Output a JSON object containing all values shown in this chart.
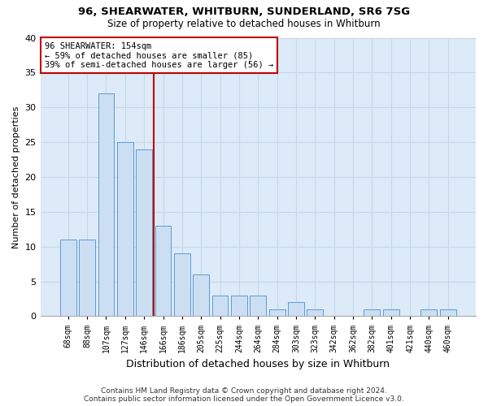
{
  "title_line1": "96, SHEARWATER, WHITBURN, SUNDERLAND, SR6 7SG",
  "title_line2": "Size of property relative to detached houses in Whitburn",
  "xlabel": "Distribution of detached houses by size in Whitburn",
  "ylabel": "Number of detached properties",
  "footer_line1": "Contains HM Land Registry data © Crown copyright and database right 2024.",
  "footer_line2": "Contains public sector information licensed under the Open Government Licence v3.0.",
  "categories": [
    "68sqm",
    "88sqm",
    "107sqm",
    "127sqm",
    "146sqm",
    "166sqm",
    "186sqm",
    "205sqm",
    "225sqm",
    "244sqm",
    "264sqm",
    "284sqm",
    "303sqm",
    "323sqm",
    "342sqm",
    "362sqm",
    "382sqm",
    "401sqm",
    "421sqm",
    "440sqm",
    "460sqm"
  ],
  "values": [
    11,
    11,
    32,
    25,
    24,
    13,
    9,
    6,
    3,
    3,
    3,
    1,
    2,
    1,
    0,
    0,
    1,
    1,
    0,
    1,
    1
  ],
  "bar_color": "#ccdff2",
  "bar_edge_color": "#5b9bd5",
  "vline_x": 4.5,
  "vline_color": "#c00000",
  "annotation_line1": "96 SHEARWATER: 154sqm",
  "annotation_line2": "← 59% of detached houses are smaller (85)",
  "annotation_line3": "39% of semi-detached houses are larger (56) →",
  "annotation_box_color": "#c00000",
  "ylim": [
    0,
    40
  ],
  "yticks": [
    0,
    5,
    10,
    15,
    20,
    25,
    30,
    35,
    40
  ],
  "grid_color": "#c5d8eb",
  "background_color": "#ddeaf7"
}
